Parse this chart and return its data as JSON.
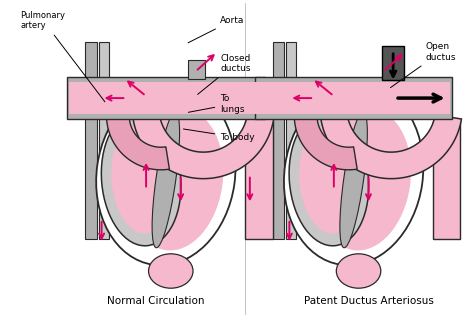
{
  "title": "Patent Ductus Arteriosus",
  "left_label": "Normal Circulation",
  "right_label": "Patent Ductus Arteriosus",
  "bg_color": "#ffffff",
  "heart_fill": "#f5b8cc",
  "heart_fill2": "#e8a0b8",
  "gray_fill": "#b0b0b0",
  "gray_fill2": "#c8c8c8",
  "outline_color": "#2a2a2a",
  "arrow_color": "#dd0066",
  "black_arrow_color": "#000000",
  "figsize": [
    4.74,
    3.18
  ],
  "dpi": 100
}
